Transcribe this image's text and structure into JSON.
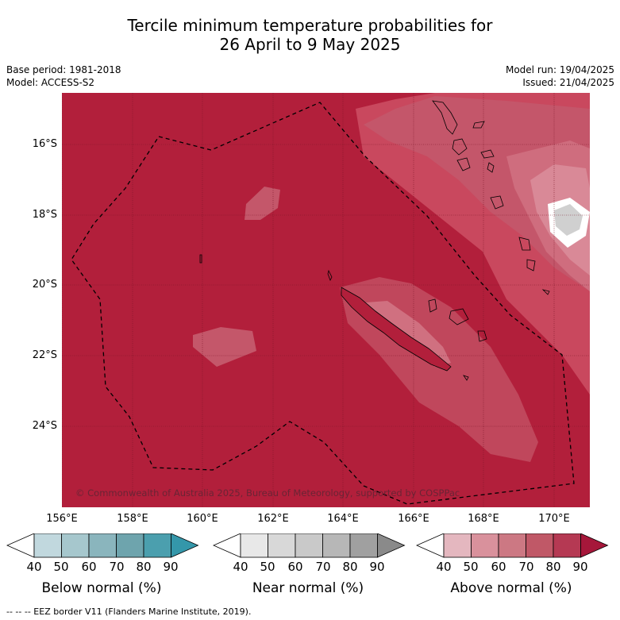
{
  "title": {
    "line1": "Tercile minimum temperature probabilities for",
    "line2": "26 April to 9 May 2025"
  },
  "meta": {
    "base_period": "Base period: 1981-2018",
    "model": "Model: ACCESS-S2",
    "model_run": "Model run: 19/04/2025",
    "issued": "Issued: 21/04/2025"
  },
  "map": {
    "lat_labels": [
      "16°S",
      "18°S",
      "20°S",
      "22°S",
      "24°S"
    ],
    "lon_labels": [
      "156°E",
      "158°E",
      "160°E",
      "162°E",
      "164°E",
      "166°E",
      "168°E",
      "170°E"
    ],
    "copyright": "© Commonwealth of Australia 2025, Bureau of Meteorology, supported by COSPPac",
    "base_color": "#b21f3b"
  },
  "colorbars": [
    {
      "name": "below",
      "title": "Below normal (%)",
      "ticks": [
        "40",
        "50",
        "60",
        "70",
        "80",
        "90"
      ],
      "colors": [
        "#c1d8de",
        "#a6c7cd",
        "#8ab5bd",
        "#6ea4ad",
        "#4b9fae",
        "#3f95a6"
      ],
      "low": "#ffffff",
      "high": "#3497aa"
    },
    {
      "name": "near",
      "title": "Near normal (%)",
      "ticks": [
        "40",
        "50",
        "60",
        "70",
        "80",
        "90"
      ],
      "colors": [
        "#e8e8e8",
        "#d8d8d8",
        "#c9c9c9",
        "#b7b7b7",
        "#a0a0a0",
        "#8a8a8a"
      ],
      "low": "#ffffff",
      "high": "#8a8a8a"
    },
    {
      "name": "above",
      "title": "Above normal (%)",
      "ticks": [
        "40",
        "50",
        "60",
        "70",
        "80",
        "90"
      ],
      "colors": [
        "#e4b7bf",
        "#d9919c",
        "#cc7883",
        "#c05867",
        "#b53953",
        "#a6173a"
      ],
      "low": "#ffffff",
      "high": "#a6173a"
    }
  ],
  "eez_note": "--  --  -- EEZ border V11 (Flanders Marine Institute, 2019)."
}
